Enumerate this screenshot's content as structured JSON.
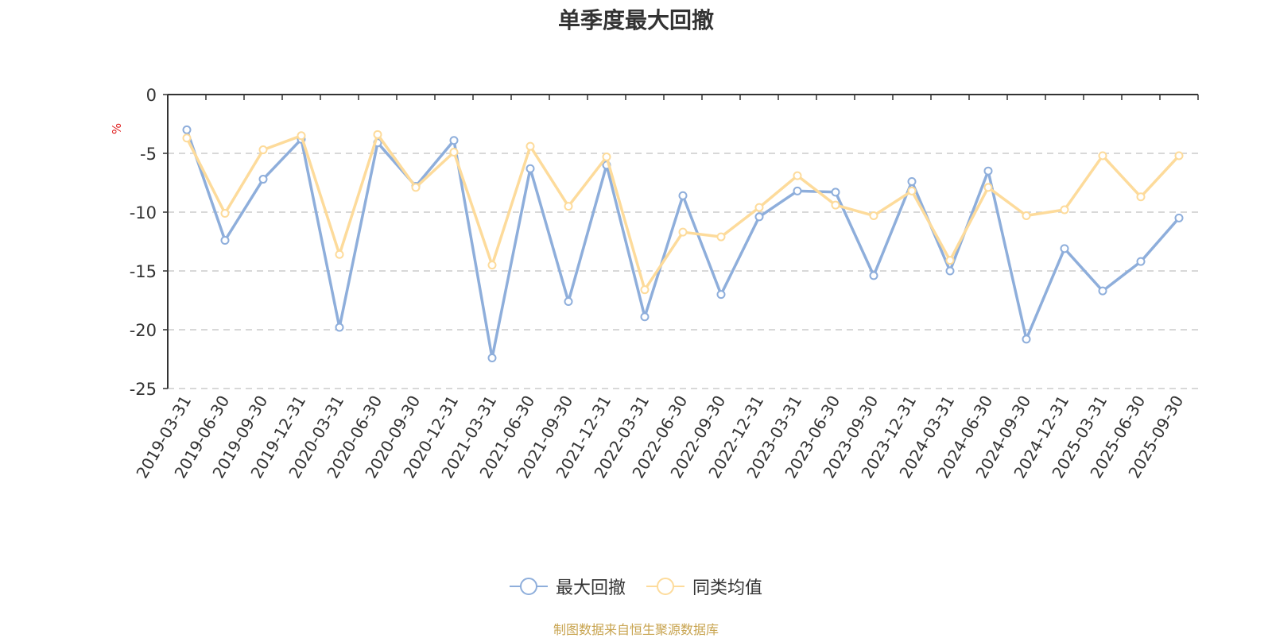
{
  "chart_data": {
    "type": "line",
    "title": "单季度最大回撤",
    "ylabel": "%",
    "xlabel": "",
    "ylim": [
      -25,
      0
    ],
    "yticks": [
      0,
      -5,
      -10,
      -15,
      -20,
      -25
    ],
    "categories": [
      "2019-03-31",
      "2019-06-30",
      "2019-09-30",
      "2019-12-31",
      "2020-03-31",
      "2020-06-30",
      "2020-09-30",
      "2020-12-31",
      "2021-03-31",
      "2021-06-30",
      "2021-09-30",
      "2021-12-31",
      "2022-03-31",
      "2022-06-30",
      "2022-09-30",
      "2022-12-31",
      "2023-03-31",
      "2023-06-30",
      "2023-09-30",
      "2023-12-31",
      "2024-03-31",
      "2024-06-30",
      "2024-09-30",
      "2024-12-31",
      "2025-03-31",
      "2025-06-30",
      "2025-09-30"
    ],
    "series": [
      {
        "name": "最大回撤",
        "color": "#8eaedb",
        "values": [
          -3.0,
          -12.4,
          -7.2,
          -3.8,
          -19.8,
          -4.1,
          -7.8,
          -3.9,
          -22.4,
          -6.3,
          -17.6,
          -6.0,
          -18.9,
          -8.6,
          -17.0,
          -10.4,
          -8.2,
          -8.3,
          -15.4,
          -7.4,
          -15.0,
          -6.5,
          -20.8,
          -13.1,
          -16.7,
          -14.2,
          -10.5
        ]
      },
      {
        "name": "同类均值",
        "color": "#fddb9b",
        "values": [
          -3.7,
          -10.1,
          -4.7,
          -3.5,
          -13.6,
          -3.4,
          -7.9,
          -4.9,
          -14.5,
          -4.4,
          -9.5,
          -5.3,
          -16.6,
          -11.7,
          -12.1,
          -9.6,
          -6.9,
          -9.4,
          -10.3,
          -8.2,
          -14.1,
          -7.9,
          -10.3,
          -9.8,
          -5.2,
          -8.7,
          -5.2
        ]
      }
    ],
    "grid": true,
    "legend_position": "bottom-center"
  },
  "legend": {
    "items": [
      "最大回撤",
      "同类均值"
    ]
  },
  "source_note": "制图数据来自恒生聚源数据库",
  "colors": {
    "series1": "#8eaedb",
    "series2": "#fddb9b",
    "unit_label": "#e02020",
    "source": "#c8a450"
  }
}
